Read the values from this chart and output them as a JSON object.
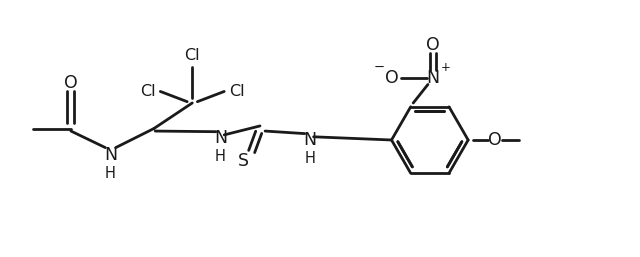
{
  "bg_color": "#ffffff",
  "line_color": "#1a1a1a",
  "line_width": 2.0,
  "font_size": 11.5,
  "figsize": [
    6.4,
    2.57
  ],
  "dpi": 100,
  "xlim": [
    0.0,
    10.0
  ],
  "ylim": [
    0.0,
    4.0
  ]
}
